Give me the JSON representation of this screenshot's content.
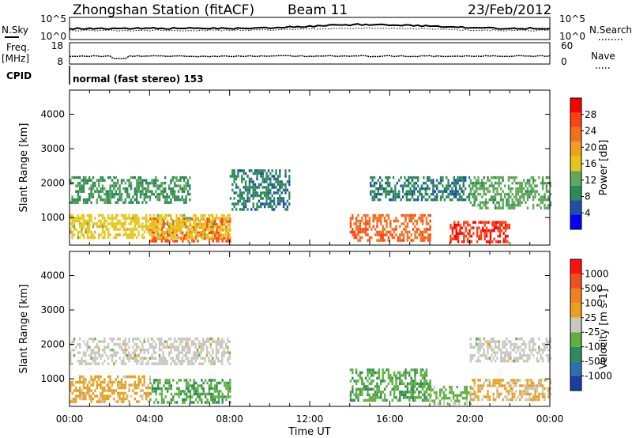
{
  "header": {
    "title": "Zhongshan Station (fitACF)",
    "beam": "Beam 11",
    "date": "23/Feb/2012"
  },
  "status_panels": {
    "nsky_label": "N.Sky",
    "nsky_ticks": [
      "10^5",
      "10^0"
    ],
    "nsearch_label": "N.Search",
    "nsearch_ticks": [
      "10^5",
      "10^0"
    ],
    "freq_label": "Freq.",
    "freq_unit": "[MHz]",
    "freq_ticks": [
      "18",
      "8"
    ],
    "nave_label": "Nave",
    "nave_ticks": [
      "60",
      "0"
    ],
    "cpid_label": "CPID",
    "cpid_value": "normal (fast stereo) 153"
  },
  "colors": {
    "power_scale": [
      "#0000ff",
      "#1f4fa8",
      "#2e8b57",
      "#5fa85a",
      "#e6c619",
      "#f0a020",
      "#f07020",
      "#ff4010",
      "#ff0000"
    ],
    "velocity_scale": [
      "#1a3fa0",
      "#2f6fb0",
      "#2e8b57",
      "#60b040",
      "#c8c8c0",
      "#e8a020",
      "#f08020",
      "#f05020",
      "#ff1010"
    ]
  },
  "chart_data": [
    {
      "type": "heatmap",
      "name": "power-panel",
      "ylabel": "Slant Range [km]",
      "yticks": [
        "4000",
        "3000",
        "2000",
        "1000"
      ],
      "ylim": [
        200,
        4700
      ],
      "colorbar_label": "Power [dB]",
      "colorbar_ticks": [
        "28",
        "24",
        "20",
        "16",
        "12",
        "8",
        "4"
      ],
      "clim": [
        0,
        32
      ],
      "xticks": [
        "00:00",
        "04:00",
        "08:00",
        "12:00",
        "16:00",
        "20:00",
        "00:00"
      ],
      "xlim_hours": [
        0,
        24
      ],
      "echo_regions": [
        {
          "t": [
            0,
            6
          ],
          "r": [
            1400,
            2200
          ],
          "value": 10
        },
        {
          "t": [
            4,
            8
          ],
          "r": [
            300,
            1000
          ],
          "value": 26
        },
        {
          "t": [
            0,
            8
          ],
          "r": [
            400,
            1100
          ],
          "value": 16
        },
        {
          "t": [
            8,
            11
          ],
          "r": [
            1200,
            2400
          ],
          "value": 8
        },
        {
          "t": [
            14,
            18
          ],
          "r": [
            300,
            1100
          ],
          "value": 24
        },
        {
          "t": [
            15,
            20
          ],
          "r": [
            1500,
            2200
          ],
          "value": 8
        },
        {
          "t": [
            20,
            24
          ],
          "r": [
            1300,
            2200
          ],
          "value": 12
        },
        {
          "t": [
            19,
            22
          ],
          "r": [
            300,
            900
          ],
          "value": 28
        }
      ]
    },
    {
      "type": "heatmap",
      "name": "velocity-panel",
      "ylabel": "Slant Range [km]",
      "yticks": [
        "4000",
        "3000",
        "2000",
        "1000"
      ],
      "ylim": [
        200,
        4700
      ],
      "colorbar_label": "Velocity [m s-1]",
      "colorbar_ticks": [
        "1000",
        "500",
        "100",
        "25",
        "-25",
        "-100",
        "-500",
        "-1000"
      ],
      "clim": [
        -1000,
        1000
      ],
      "xlabel": "Time UT",
      "xticks": [
        "00:00",
        "04:00",
        "08:00",
        "12:00",
        "16:00",
        "20:00",
        "00:00"
      ],
      "xlim_hours": [
        0,
        24
      ],
      "echo_regions": [
        {
          "t": [
            0,
            8
          ],
          "r": [
            1400,
            2200
          ],
          "value": 0
        },
        {
          "t": [
            0,
            4
          ],
          "r": [
            300,
            1100
          ],
          "value": 200
        },
        {
          "t": [
            4,
            8
          ],
          "r": [
            300,
            1000
          ],
          "value": -300
        },
        {
          "t": [
            14,
            18
          ],
          "r": [
            400,
            1300
          ],
          "value": -300
        },
        {
          "t": [
            18,
            20
          ],
          "r": [
            300,
            800
          ],
          "value": -150
        },
        {
          "t": [
            20,
            24
          ],
          "r": [
            400,
            1000
          ],
          "value": 150
        },
        {
          "t": [
            20,
            24
          ],
          "r": [
            1500,
            2200
          ],
          "value": 0
        }
      ]
    }
  ]
}
